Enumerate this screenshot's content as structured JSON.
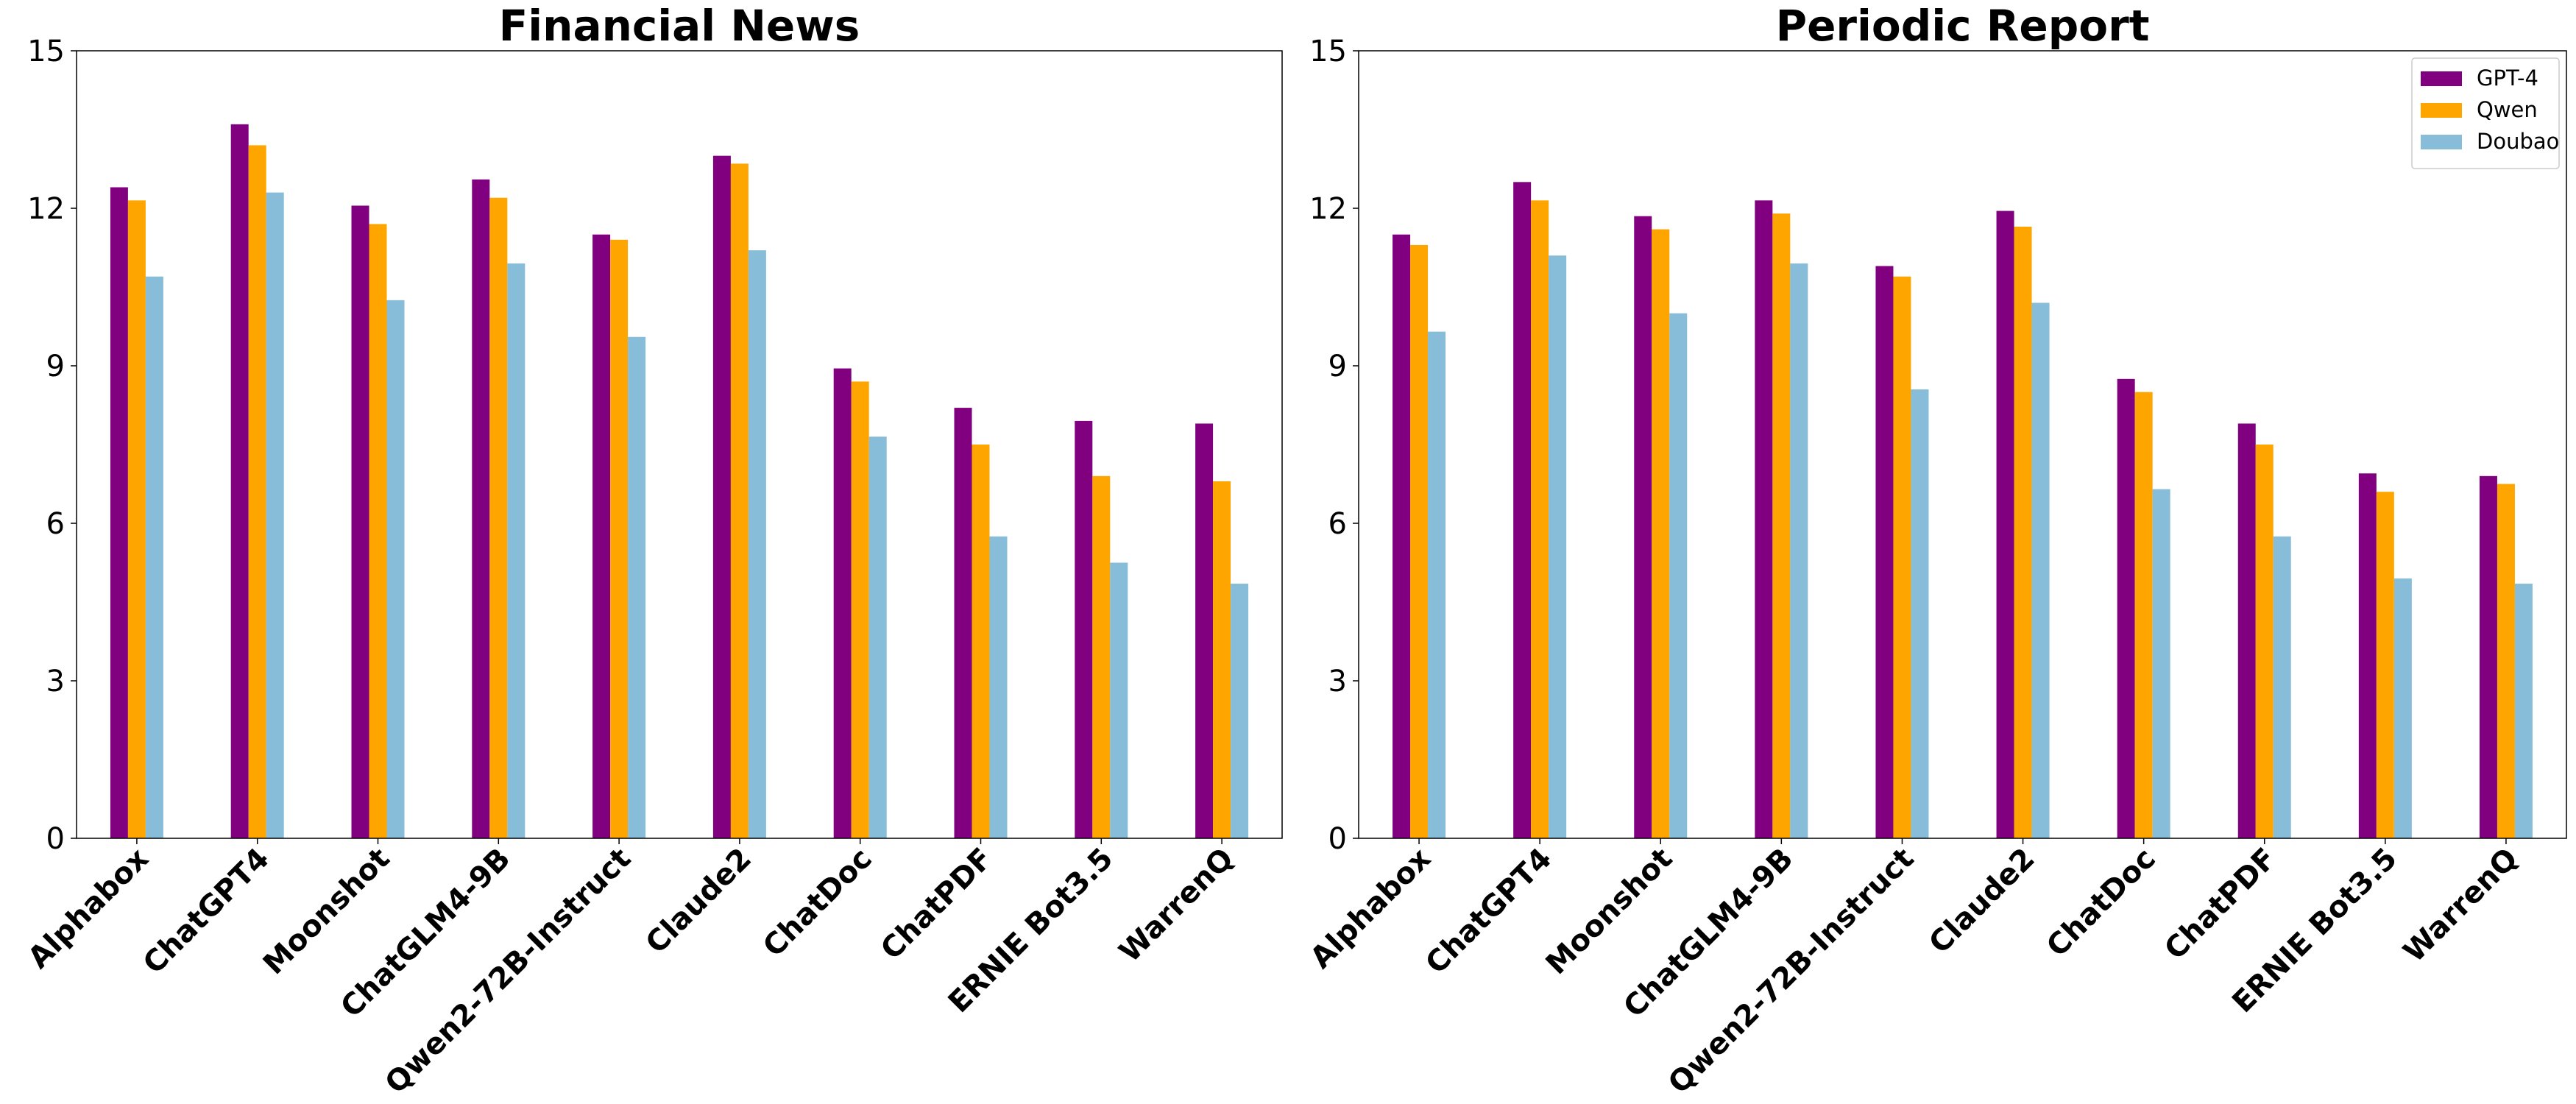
{
  "chart_data": [
    {
      "type": "bar",
      "title": "Financial News",
      "xlabel": "",
      "ylabel": "",
      "categories": [
        "Alphabox",
        "ChatGPT4",
        "Moonshot",
        "ChatGLM4-9B",
        "Qwen2-72B-Instruct",
        "Claude2",
        "ChatDoc",
        "ChatPDF",
        "ERNIE Bot3.5",
        "WarrenQ"
      ],
      "ylim": [
        0,
        15
      ],
      "yticks": [
        0,
        3,
        6,
        9,
        12,
        15
      ],
      "grid": false,
      "legend": false,
      "series": [
        {
          "name": "GPT-4",
          "color": "#800080",
          "values": [
            12.4,
            13.6,
            12.05,
            12.55,
            11.5,
            13.0,
            8.95,
            8.2,
            7.95,
            7.9
          ]
        },
        {
          "name": "Qwen",
          "color": "#ffa500",
          "values": [
            12.15,
            13.2,
            11.7,
            12.2,
            11.4,
            12.85,
            8.7,
            7.5,
            6.9,
            6.8
          ]
        },
        {
          "name": "Doubao",
          "color": "#87bdd8",
          "values": [
            10.7,
            12.3,
            10.25,
            10.95,
            9.55,
            11.2,
            7.65,
            5.75,
            5.25,
            4.85
          ]
        }
      ]
    },
    {
      "type": "bar",
      "title": "Periodic Report",
      "xlabel": "",
      "ylabel": "",
      "categories": [
        "Alphabox",
        "ChatGPT4",
        "Moonshot",
        "ChatGLM4-9B",
        "Qwen2-72B-Instruct",
        "Claude2",
        "ChatDoc",
        "ChatPDF",
        "ERNIE Bot3.5",
        "WarrenQ"
      ],
      "ylim": [
        0,
        15
      ],
      "yticks": [
        0,
        3,
        6,
        9,
        12,
        15
      ],
      "grid": false,
      "legend": "top-right",
      "series": [
        {
          "name": "GPT-4",
          "color": "#800080",
          "values": [
            11.5,
            12.5,
            11.85,
            12.15,
            10.9,
            11.95,
            8.75,
            7.9,
            6.95,
            6.9
          ]
        },
        {
          "name": "Qwen",
          "color": "#ffa500",
          "values": [
            11.3,
            12.15,
            11.6,
            11.9,
            10.7,
            11.65,
            8.5,
            7.5,
            6.6,
            6.75
          ]
        },
        {
          "name": "Doubao",
          "color": "#87bdd8",
          "values": [
            9.65,
            11.1,
            10.0,
            10.95,
            8.55,
            10.2,
            6.65,
            5.75,
            4.95,
            4.85
          ]
        }
      ]
    }
  ]
}
